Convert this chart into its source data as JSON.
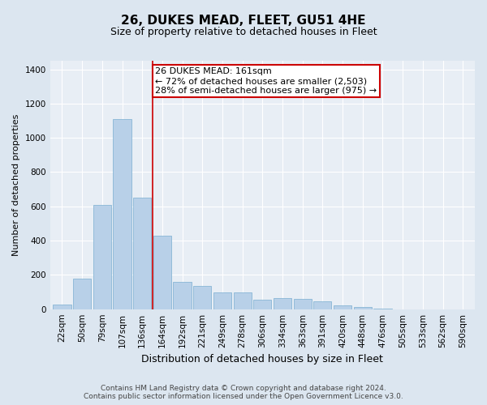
{
  "title": "26, DUKES MEAD, FLEET, GU51 4HE",
  "subtitle": "Size of property relative to detached houses in Fleet",
  "xlabel": "Distribution of detached houses by size in Fleet",
  "ylabel": "Number of detached properties",
  "categories": [
    "22sqm",
    "50sqm",
    "79sqm",
    "107sqm",
    "136sqm",
    "164sqm",
    "192sqm",
    "221sqm",
    "249sqm",
    "278sqm",
    "306sqm",
    "334sqm",
    "363sqm",
    "391sqm",
    "420sqm",
    "448sqm",
    "476sqm",
    "505sqm",
    "533sqm",
    "562sqm",
    "590sqm"
  ],
  "values": [
    25,
    180,
    610,
    1110,
    650,
    430,
    160,
    135,
    100,
    100,
    55,
    65,
    60,
    45,
    20,
    15,
    5,
    0,
    0,
    0,
    0
  ],
  "bar_color": "#b8d0e8",
  "bar_edge_color": "#7aaed0",
  "vline_color": "#cc0000",
  "annotation_text": "26 DUKES MEAD: 161sqm\n← 72% of detached houses are smaller (2,503)\n28% of semi-detached houses are larger (975) →",
  "annotation_box_color": "white",
  "annotation_box_edge_color": "#cc0000",
  "footer_line1": "Contains HM Land Registry data © Crown copyright and database right 2024.",
  "footer_line2": "Contains public sector information licensed under the Open Government Licence v3.0.",
  "bg_color": "#dce6f0",
  "plot_bg_color": "#e8eef5",
  "ylim": [
    0,
    1450
  ],
  "yticks": [
    0,
    200,
    400,
    600,
    800,
    1000,
    1200,
    1400
  ],
  "grid_color": "#ffffff",
  "title_fontsize": 11,
  "subtitle_fontsize": 9,
  "axis_label_fontsize": 8,
  "tick_fontsize": 7.5,
  "footer_fontsize": 6.5,
  "annotation_fontsize": 8
}
